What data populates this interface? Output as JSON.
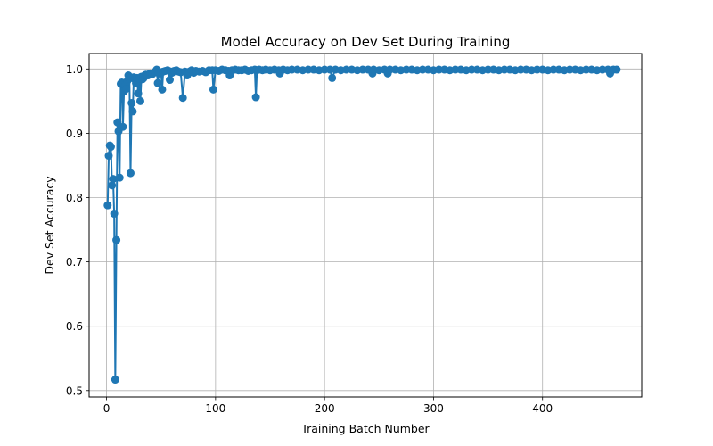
{
  "chart_data": {
    "type": "line",
    "title": "Model Accuracy on Dev Set During Training",
    "xlabel": "Training Batch Number",
    "ylabel": "Dev Set Accuracy",
    "xlim": [
      -16,
      491
    ],
    "ylim": [
      0.49,
      1.024
    ],
    "xticks": [
      0,
      100,
      200,
      300,
      400
    ],
    "yticks": [
      0.5,
      0.6,
      0.7,
      0.8,
      0.9,
      1.0
    ],
    "xtick_labels": [
      "0",
      "100",
      "200",
      "300",
      "400"
    ],
    "ytick_labels": [
      "0.5",
      "0.6",
      "0.7",
      "0.8",
      "0.9",
      "1.0"
    ],
    "grid": true,
    "legend": "none",
    "series": [
      {
        "color": "#1f77b4",
        "marker": "circle",
        "x": [
          1,
          2,
          3,
          4,
          5,
          6,
          7,
          8,
          9,
          10,
          11,
          12,
          13,
          14,
          15,
          16,
          17,
          18,
          19,
          20,
          21,
          22,
          23,
          24,
          25,
          26,
          27,
          28,
          29,
          30,
          31,
          32,
          33,
          34,
          35,
          36,
          38,
          40,
          42,
          44,
          46,
          47,
          48,
          50,
          51,
          52,
          54,
          56,
          58,
          59,
          60,
          62,
          64,
          66,
          68,
          70,
          72,
          74,
          76,
          78,
          80,
          82,
          85,
          88,
          91,
          94,
          97,
          98,
          100,
          103,
          106,
          109,
          112,
          113,
          115,
          118,
          121,
          124,
          127,
          130,
          133,
          136,
          137,
          138,
          140,
          143,
          146,
          150,
          154,
          158,
          159,
          162,
          166,
          170,
          175,
          180,
          185,
          190,
          195,
          200,
          205,
          207,
          210,
          215,
          220,
          225,
          230,
          235,
          240,
          244,
          245,
          250,
          255,
          258,
          260,
          265,
          270,
          275,
          280,
          285,
          290,
          295,
          300,
          305,
          310,
          315,
          320,
          325,
          330,
          335,
          340,
          345,
          350,
          355,
          360,
          365,
          370,
          375,
          380,
          385,
          390,
          395,
          400,
          405,
          410,
          415,
          420,
          425,
          430,
          435,
          440,
          445,
          450,
          455,
          460,
          462,
          465,
          468
        ],
        "y": [
          0.788,
          0.865,
          0.881,
          0.879,
          0.819,
          0.829,
          0.775,
          0.517,
          0.734,
          0.917,
          0.903,
          0.831,
          0.977,
          0.979,
          0.91,
          0.965,
          0.975,
          0.969,
          0.981,
          0.99,
          0.985,
          0.838,
          0.947,
          0.934,
          0.987,
          0.984,
          0.978,
          0.986,
          0.962,
          0.985,
          0.95,
          0.988,
          0.984,
          0.986,
          0.99,
          0.991,
          0.99,
          0.993,
          0.992,
          0.995,
          0.999,
          0.978,
          0.993,
          0.995,
          0.968,
          0.996,
          0.997,
          0.998,
          0.983,
          0.996,
          0.994,
          0.997,
          0.998,
          0.996,
          0.995,
          0.955,
          0.996,
          0.99,
          0.996,
          0.998,
          0.994,
          0.997,
          0.996,
          0.997,
          0.995,
          0.998,
          0.998,
          0.968,
          0.998,
          0.997,
          0.999,
          0.998,
          0.997,
          0.99,
          0.998,
          0.999,
          0.998,
          0.998,
          0.999,
          0.997,
          0.998,
          0.999,
          0.956,
          0.998,
          0.999,
          0.998,
          0.999,
          0.998,
          0.999,
          0.998,
          0.993,
          0.999,
          0.998,
          0.999,
          0.999,
          0.998,
          0.999,
          0.999,
          0.998,
          0.999,
          0.999,
          0.986,
          0.999,
          0.998,
          0.999,
          0.999,
          0.998,
          0.999,
          0.999,
          0.993,
          0.999,
          0.998,
          0.999,
          0.993,
          0.999,
          0.999,
          0.998,
          0.999,
          0.999,
          0.998,
          0.999,
          0.999,
          0.998,
          0.999,
          0.999,
          0.998,
          0.999,
          0.999,
          0.998,
          0.999,
          0.999,
          0.998,
          0.999,
          0.999,
          0.998,
          0.999,
          0.999,
          0.998,
          0.999,
          0.999,
          0.998,
          0.999,
          0.999,
          0.998,
          0.999,
          0.999,
          0.998,
          0.999,
          0.999,
          0.998,
          0.999,
          0.999,
          0.998,
          0.999,
          0.999,
          0.993,
          0.999,
          0.999
        ]
      }
    ]
  }
}
